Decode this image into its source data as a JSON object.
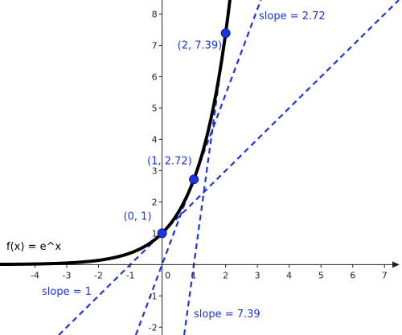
{
  "chart_data": {
    "type": "line",
    "xlim": [
      -5.1,
      7.55
    ],
    "ylim": [
      -2.25,
      8.45
    ],
    "grid": false,
    "x_ticks": [
      -4,
      -3,
      -2,
      -1,
      0,
      1,
      2,
      3,
      4,
      5,
      6,
      7
    ],
    "x_tick_labels": [
      "-4",
      "-3",
      "-2",
      "-1",
      "0",
      "1",
      "2",
      "3",
      "4",
      "5",
      "6",
      "7"
    ],
    "y_ticks": [
      -2,
      -1,
      1,
      2,
      3,
      4,
      5,
      6,
      7,
      8
    ],
    "y_tick_labels": [
      "-2",
      "-1",
      "1",
      "2",
      "3",
      "4",
      "5",
      "6",
      "7",
      "8"
    ],
    "colors": {
      "curve": "#000000",
      "accent": "#1f33e0",
      "axis": "#222222"
    },
    "curve": {
      "function": "exp",
      "x_min": -5.1,
      "x_max": 2.25,
      "label": "f(x) = e^x"
    },
    "points": [
      {
        "x": 0,
        "y": 1,
        "label": "(0, 1)"
      },
      {
        "x": 1,
        "y": 2.72,
        "label": "(1, 2.72)"
      },
      {
        "x": 2,
        "y": 7.39,
        "label": "(2, 7.39)"
      }
    ],
    "tangents": [
      {
        "at_x": 0,
        "slope": 1,
        "intercept": 1,
        "label": "slope = 1"
      },
      {
        "at_x": 1,
        "slope": 2.72,
        "intercept": 0,
        "label": "slope = 2.72"
      },
      {
        "at_x": 2,
        "slope": 7.39,
        "intercept": -7.39,
        "label": "slope = 7.39"
      }
    ]
  }
}
